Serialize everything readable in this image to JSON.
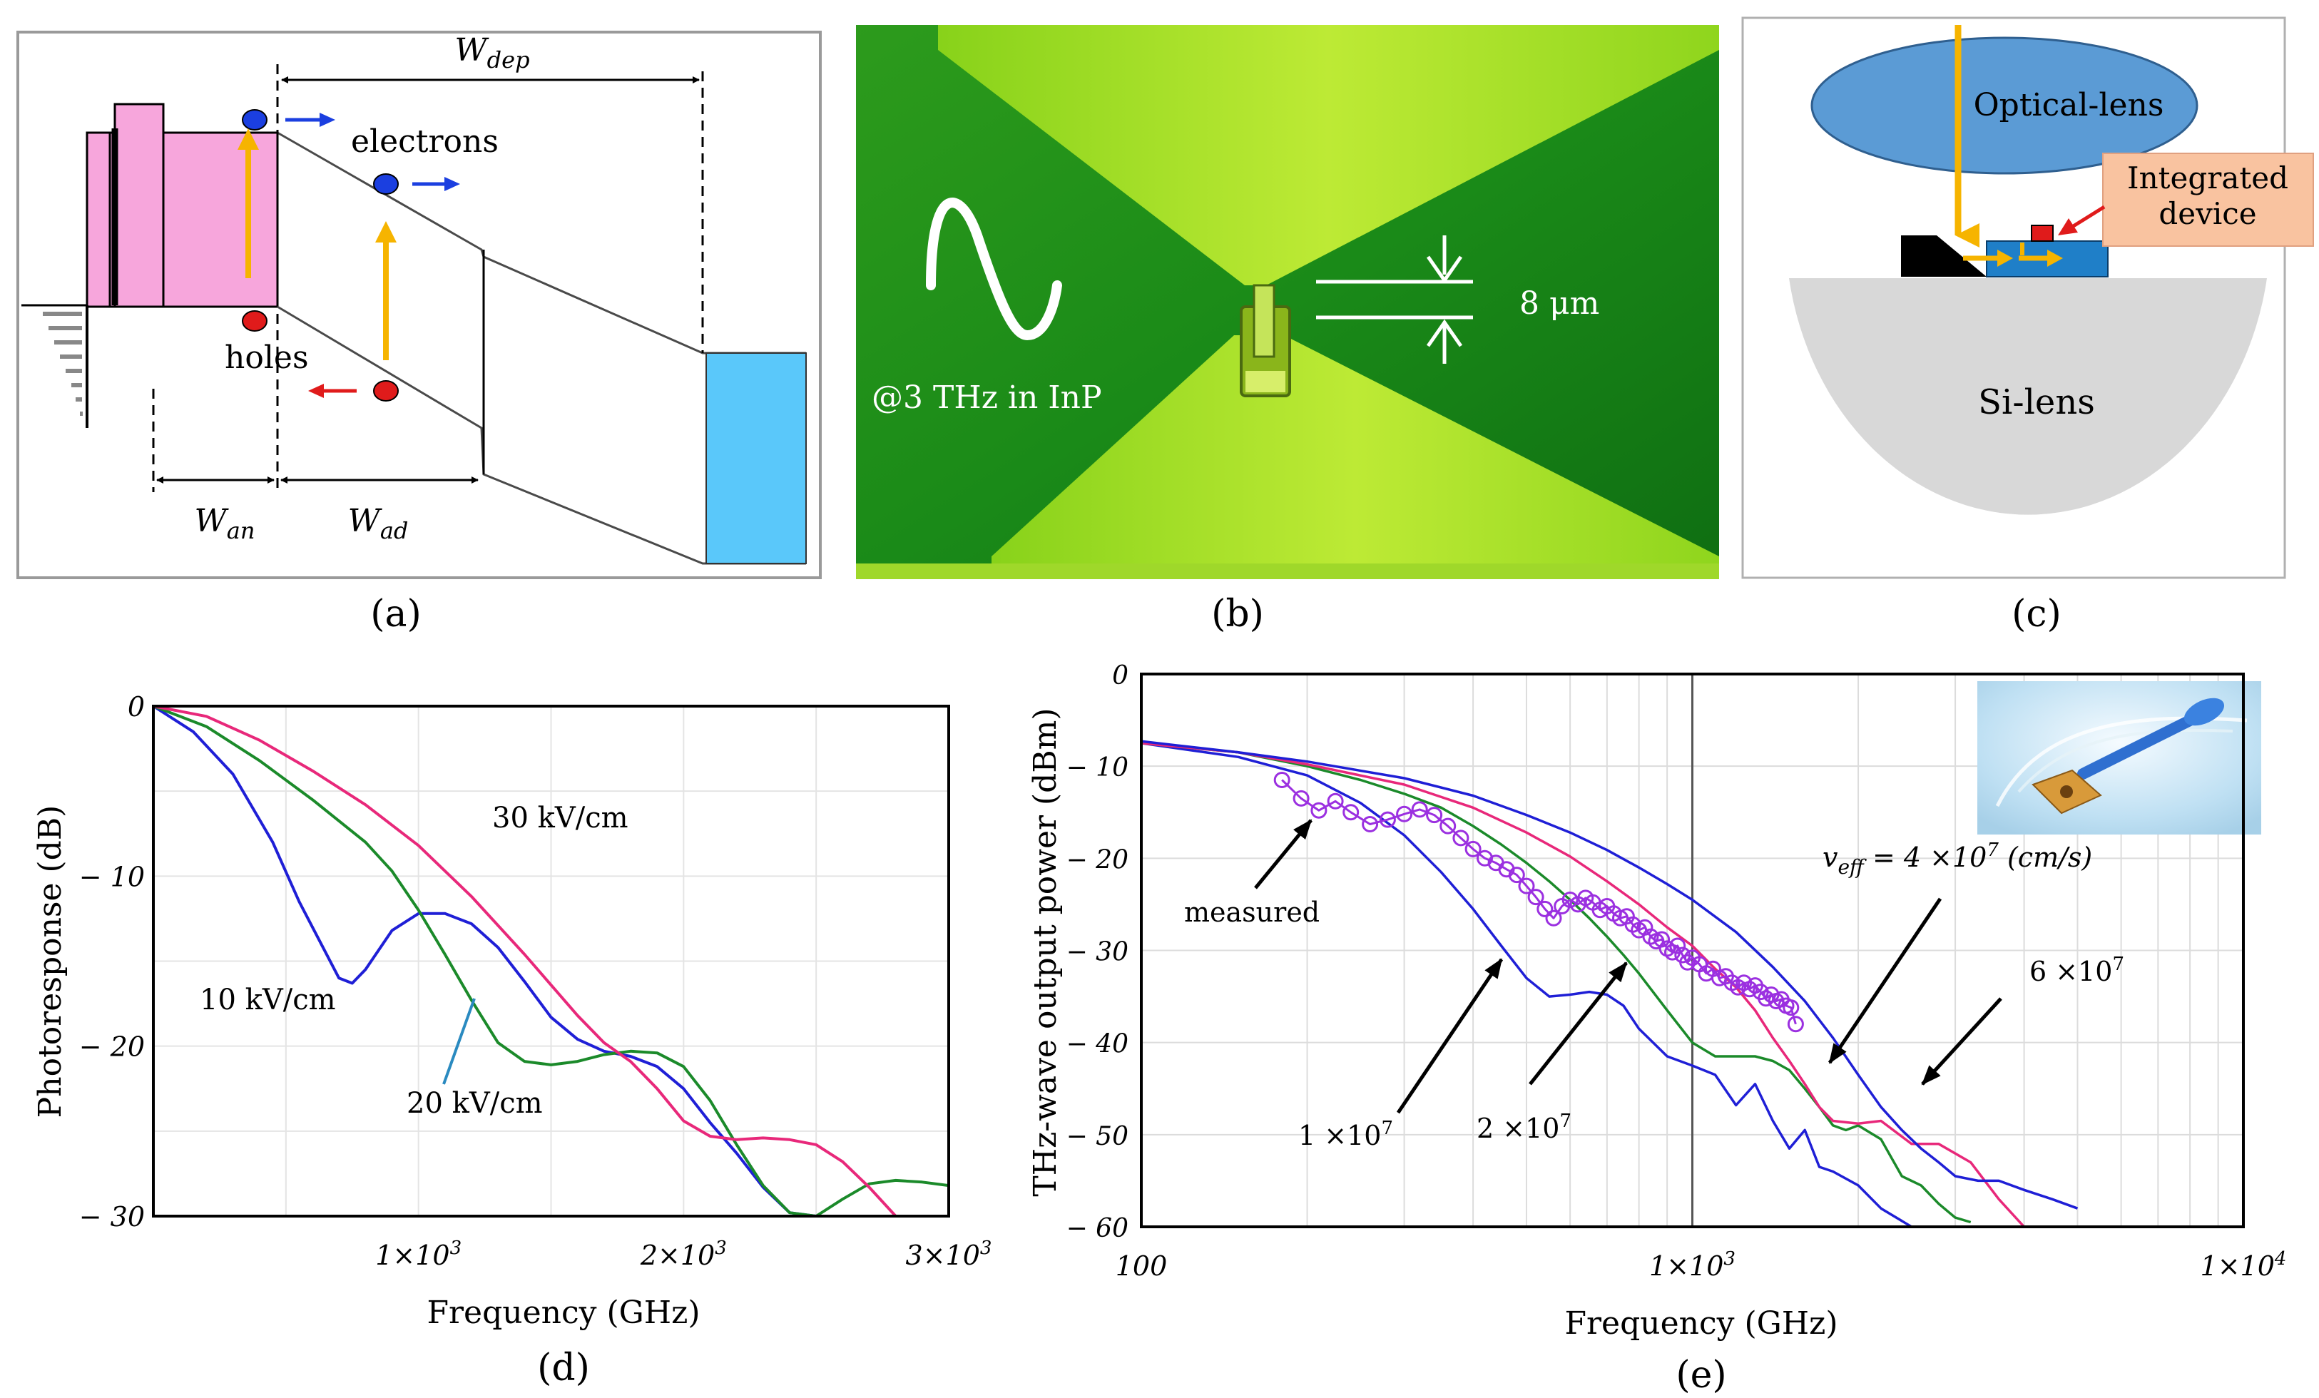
{
  "panels": {
    "a": {
      "caption": "(a)",
      "labels": {
        "w_dep": "W_dep",
        "electrons": "electrons",
        "holes": "holes",
        "w_an": "W_an",
        "w_ad": "W_ad"
      }
    },
    "b": {
      "caption": "(b)",
      "gap_label": "8 μm",
      "freq_label": "@3 THz in InP"
    },
    "c": {
      "caption": "(c)",
      "optical_lens": "Optical-lens",
      "integrated_device": [
        "Integrated",
        "device"
      ],
      "si_lens": "Si-lens"
    },
    "d": {
      "caption": "(d)",
      "curve_labels": [
        "30 kV/cm",
        "10 kV/cm",
        "20 kV/cm"
      ]
    },
    "e": {
      "caption": "(e)",
      "annotations": {
        "measured": "measured",
        "veff": "v_eff = 4 ×10^7 (cm/s)",
        "six": "6 ×10^7",
        "one": "1 ×10^7",
        "two": "2 ×10^7"
      }
    }
  },
  "chart_data": [
    {
      "id": "d",
      "type": "line",
      "title": "",
      "xlabel": "Frequency (GHz)",
      "ylabel": "Photoresponse (dB)",
      "xlim": [
        0,
        3000
      ],
      "ylim": [
        -30,
        0
      ],
      "xticks": [
        1000,
        2000,
        3000
      ],
      "xtick_labels": [
        "1×10^3",
        "2×10^3",
        "3×10^3"
      ],
      "yticks": [
        0,
        -10,
        -20,
        -30
      ],
      "ytick_labels": [
        "0",
        "− 10",
        "− 20",
        "− 30"
      ],
      "grid": true,
      "series": [
        {
          "name": "10 kV/cm",
          "color": "#1f1fd6",
          "x": [
            0,
            150,
            300,
            450,
            550,
            650,
            700,
            750,
            800,
            900,
            1000,
            1100,
            1200,
            1300,
            1400,
            1500,
            1600,
            1700,
            1800,
            1900,
            2000,
            2100,
            2200,
            2300,
            2400,
            2500
          ],
          "y": [
            0,
            -1.5,
            -4,
            -8,
            -11.5,
            -14.5,
            -16,
            -16.3,
            -15.5,
            -13.2,
            -12.2,
            -12.2,
            -12.8,
            -14.2,
            -16.2,
            -18.3,
            -19.6,
            -20.3,
            -20.6,
            -21.2,
            -22.5,
            -24.5,
            -26.3,
            -28.3,
            -29.8,
            -30
          ]
        },
        {
          "name": "20 kV/cm",
          "color": "#1b8a2a",
          "x": [
            0,
            200,
            400,
            600,
            800,
            900,
            1000,
            1100,
            1200,
            1300,
            1400,
            1500,
            1600,
            1700,
            1800,
            1900,
            2000,
            2100,
            2200,
            2300,
            2400,
            2500,
            2600,
            2700,
            2800,
            2900,
            3000
          ],
          "y": [
            0,
            -1.2,
            -3.2,
            -5.5,
            -8,
            -9.7,
            -12,
            -14.6,
            -17.3,
            -19.8,
            -20.9,
            -21.1,
            -20.9,
            -20.5,
            -20.3,
            -20.4,
            -21.2,
            -23.2,
            -25.8,
            -28.2,
            -29.8,
            -30,
            -29,
            -28.1,
            -27.9,
            -28,
            -28.2
          ]
        },
        {
          "name": "30 kV/cm",
          "color": "#e8287a",
          "x": [
            0,
            200,
            400,
            600,
            800,
            1000,
            1200,
            1400,
            1600,
            1700,
            1800,
            1900,
            2000,
            2100,
            2200,
            2300,
            2400,
            2500,
            2600,
            2700,
            2800
          ],
          "y": [
            0,
            -0.6,
            -2,
            -3.8,
            -5.8,
            -8.2,
            -11.2,
            -14.6,
            -18.2,
            -19.8,
            -20.9,
            -22.5,
            -24.4,
            -25.3,
            -25.5,
            -25.4,
            -25.5,
            -25.8,
            -26.8,
            -28.3,
            -30
          ]
        }
      ]
    },
    {
      "id": "e",
      "type": "line",
      "title": "",
      "xlabel": "Frequency (GHz)",
      "ylabel": "THz-wave output power (dBm)",
      "xscale": "log",
      "xlim": [
        100,
        10000
      ],
      "ylim": [
        -60,
        0
      ],
      "xticks": [
        100,
        1000,
        10000
      ],
      "xtick_labels": [
        "100",
        "1×10^3",
        "1×10^4"
      ],
      "yticks": [
        0,
        -10,
        -20,
        -30,
        -40,
        -50,
        -60
      ],
      "ytick_labels": [
        "0",
        "− 10",
        "− 20",
        "− 30",
        "− 40",
        "− 50",
        "− 60"
      ],
      "grid": true,
      "series": [
        {
          "name": "1 ×10^7",
          "color": "#1f1fd6",
          "x": [
            100,
            150,
            200,
            250,
            300,
            350,
            400,
            450,
            500,
            550,
            600,
            650,
            700,
            750,
            800,
            900,
            1000,
            1100,
            1200,
            1300,
            1400,
            1500,
            1600,
            1700,
            1800,
            2000,
            2200,
            2500
          ],
          "y": [
            -7.5,
            -9,
            -11,
            -14,
            -17.5,
            -21.5,
            -25.5,
            -29.5,
            -33,
            -35,
            -34.8,
            -34.5,
            -34.8,
            -36,
            -38.5,
            -41.5,
            -42.5,
            -43.5,
            -46.8,
            -44.5,
            -48.5,
            -51.5,
            -49.5,
            -53.5,
            -54,
            -55.5,
            -58,
            -60
          ]
        },
        {
          "name": "2 ×10^7",
          "color": "#1b8a2a",
          "x": [
            100,
            150,
            200,
            250,
            300,
            350,
            400,
            450,
            500,
            550,
            600,
            650,
            700,
            750,
            800,
            900,
            1000,
            1100,
            1200,
            1300,
            1400,
            1500,
            1600,
            1700,
            1800,
            1900,
            2000,
            2200,
            2400,
            2600,
            2800,
            3000,
            3200
          ],
          "y": [
            -7.5,
            -8.5,
            -10,
            -11.5,
            -13,
            -14.5,
            -16.5,
            -18.5,
            -20.5,
            -22.5,
            -24.5,
            -26.5,
            -28.5,
            -30.5,
            -32.5,
            -36.5,
            -40,
            -41.5,
            -41.5,
            -41.5,
            -42,
            -43,
            -45,
            -47,
            -49,
            -49.5,
            -49,
            -50.5,
            -54.5,
            -55.5,
            -57.5,
            -59,
            -59.5
          ]
        },
        {
          "name": "4 ×10^7",
          "color": "#e8287a",
          "x": [
            100,
            150,
            200,
            300,
            400,
            500,
            600,
            700,
            800,
            900,
            1000,
            1100,
            1200,
            1300,
            1400,
            1500,
            1600,
            1700,
            1800,
            2000,
            2200,
            2500,
            2800,
            3200,
            3600,
            4000
          ],
          "y": [
            -7.5,
            -8.5,
            -9.8,
            -12,
            -14.5,
            -17.2,
            -19.8,
            -22.5,
            -25,
            -27.5,
            -29.5,
            -32,
            -34,
            -36.5,
            -39.5,
            -42,
            -44.5,
            -47,
            -48.5,
            -48.8,
            -48.5,
            -51,
            -51,
            -53,
            -57,
            -60
          ]
        },
        {
          "name": "6 ×10^7",
          "color": "#1f1fd6",
          "x": [
            100,
            150,
            200,
            300,
            400,
            500,
            600,
            700,
            800,
            900,
            1000,
            1200,
            1400,
            1600,
            1800,
            2000,
            2200,
            2400,
            2600,
            2800,
            3000,
            3300,
            3600,
            4000,
            4500,
            5000
          ],
          "y": [
            -7.3,
            -8.5,
            -9.5,
            -11.3,
            -13.2,
            -15.3,
            -17.2,
            -19.1,
            -21,
            -22.8,
            -24.5,
            -28,
            -31.8,
            -35.5,
            -39.5,
            -43.5,
            -47,
            -49.5,
            -51.5,
            -53,
            -54.5,
            -55,
            -55,
            -56,
            -57,
            -58
          ]
        },
        {
          "name": "measured",
          "color": "#9b30e0",
          "markers": true,
          "x": [
            180,
            195,
            210,
            225,
            240,
            260,
            280,
            300,
            320,
            340,
            360,
            380,
            400,
            420,
            440,
            460,
            480,
            500,
            520,
            540,
            560,
            580,
            600,
            620,
            640,
            660,
            680,
            700,
            720,
            740,
            760,
            780,
            800,
            820,
            840,
            860,
            880,
            900,
            920,
            940,
            960,
            980,
            1000,
            1030,
            1060,
            1090,
            1120,
            1150,
            1180,
            1210,
            1240,
            1270,
            1300,
            1330,
            1360,
            1390,
            1420,
            1450,
            1480,
            1510,
            1540
          ],
          "y": [
            -11.5,
            -13.5,
            -14.8,
            -13.8,
            -15,
            -16.3,
            -15.8,
            -15.2,
            -14.7,
            -15.3,
            -16.5,
            -17.8,
            -19,
            -20,
            -20.5,
            -21.2,
            -21.8,
            -23,
            -24.2,
            -25.5,
            -26.5,
            -25.2,
            -24.5,
            -25,
            -24.3,
            -24.8,
            -25.6,
            -25.2,
            -26,
            -26.5,
            -26.3,
            -27.2,
            -27.8,
            -27.5,
            -28.5,
            -29,
            -28.8,
            -29.8,
            -30.2,
            -29.5,
            -30.5,
            -31.3,
            -30.8,
            -31.5,
            -32.5,
            -32,
            -33,
            -32.8,
            -33.5,
            -34,
            -33.5,
            -34.2,
            -33.8,
            -34.5,
            -35.2,
            -34.8,
            -35.5,
            -35.3,
            -36,
            -36.2,
            -38
          ]
        }
      ]
    }
  ],
  "colors": {
    "pink": "#f7a6dc",
    "cyan": "#5ac8fa",
    "green_dark": "#1e8a1e",
    "green_light": "#a8e62a",
    "lens_blue": "#5b9bd5",
    "si_gray": "#d8d8d8",
    "device_peach": "#f9c3a0",
    "arrow_yellow": "#f6b400"
  }
}
